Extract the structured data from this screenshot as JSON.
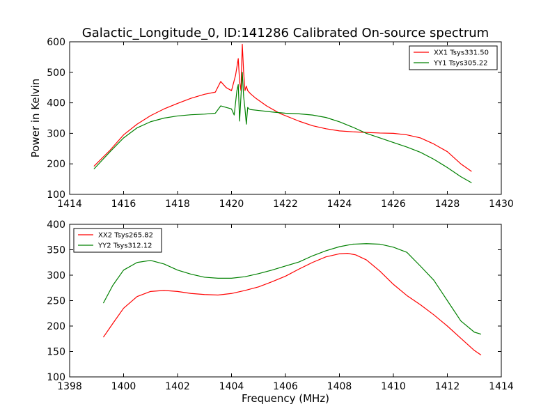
{
  "figure": {
    "title": "Galactic_Longitude_0, ID:141286 Calibrated On-source spectrum",
    "shared_xlabel": "Frequency (MHz)"
  },
  "chart_data": [
    {
      "type": "line",
      "title": "Galactic_Longitude_0, ID:141286 Calibrated On-source spectrum",
      "xlabel": "",
      "ylabel": "Power in Kelvin",
      "xlim": [
        1414,
        1430
      ],
      "ylim": [
        100,
        600
      ],
      "xticks": [
        "1414",
        "1416",
        "1418",
        "1420",
        "1422",
        "1424",
        "1426",
        "1428",
        "1430"
      ],
      "yticks": [
        "100",
        "200",
        "300",
        "400",
        "500",
        "600"
      ],
      "grid": false,
      "legend": "top-right",
      "series": [
        {
          "name": "XX1 Tsys331.50",
          "color": "#ff0000",
          "x": [
            1414.9,
            1415.5,
            1416,
            1416.5,
            1417,
            1417.5,
            1418,
            1418.5,
            1419,
            1419.4,
            1419.6,
            1419.8,
            1420,
            1420.15,
            1420.25,
            1420.3,
            1420.35,
            1420.4,
            1420.45,
            1420.5,
            1420.55,
            1420.6,
            1420.7,
            1420.9,
            1421.3,
            1421.8,
            1422.5,
            1423,
            1423.5,
            1424,
            1424.5,
            1425,
            1425.5,
            1426,
            1426.5,
            1427,
            1427.5,
            1428,
            1428.5,
            1428.9
          ],
          "y": [
            192,
            245,
            295,
            330,
            358,
            380,
            398,
            415,
            428,
            435,
            470,
            450,
            440,
            490,
            545,
            470,
            440,
            592,
            500,
            440,
            455,
            440,
            430,
            415,
            390,
            365,
            340,
            325,
            315,
            308,
            305,
            303,
            301,
            300,
            295,
            285,
            265,
            240,
            200,
            175
          ]
        },
        {
          "name": "YY1 Tsys305.22",
          "color": "#008000",
          "x": [
            1414.9,
            1415.5,
            1416,
            1416.5,
            1417,
            1417.5,
            1418,
            1418.5,
            1419,
            1419.4,
            1419.6,
            1419.8,
            1420,
            1420.1,
            1420.2,
            1420.25,
            1420.3,
            1420.35,
            1420.4,
            1420.45,
            1420.5,
            1420.55,
            1420.6,
            1420.65,
            1420.7,
            1421,
            1421.5,
            1422,
            1422.5,
            1423,
            1423.5,
            1424,
            1424.5,
            1425,
            1425.5,
            1426,
            1426.5,
            1427,
            1427.5,
            1428,
            1428.5,
            1428.9
          ],
          "y": [
            183,
            240,
            285,
            318,
            338,
            350,
            357,
            361,
            363,
            366,
            390,
            385,
            380,
            360,
            440,
            460,
            340,
            420,
            500,
            420,
            380,
            330,
            385,
            380,
            378,
            375,
            370,
            366,
            364,
            360,
            352,
            338,
            320,
            300,
            285,
            270,
            255,
            238,
            215,
            188,
            158,
            138
          ]
        }
      ]
    },
    {
      "type": "line",
      "title": "",
      "xlabel": "Frequency (MHz)",
      "ylabel": "",
      "xlim": [
        1398,
        1414
      ],
      "ylim": [
        100,
        400
      ],
      "xticks": [
        "1398",
        "1400",
        "1402",
        "1404",
        "1406",
        "1408",
        "1410",
        "1412",
        "1414"
      ],
      "yticks": [
        "100",
        "150",
        "200",
        "250",
        "300",
        "350",
        "400"
      ],
      "grid": false,
      "legend": "top-left",
      "series": [
        {
          "name": "XX2 Tsys265.82",
          "color": "#ff0000",
          "x": [
            1399.25,
            1399.6,
            1400,
            1400.5,
            1401,
            1401.5,
            1402,
            1402.5,
            1403,
            1403.5,
            1404,
            1404.5,
            1405,
            1405.5,
            1406,
            1406.5,
            1407,
            1407.5,
            1408,
            1408.3,
            1408.6,
            1409,
            1409.5,
            1410,
            1410.5,
            1411,
            1411.5,
            1412,
            1412.5,
            1413,
            1413.25
          ],
          "y": [
            178,
            205,
            235,
            258,
            268,
            270,
            268,
            264,
            262,
            261,
            264,
            270,
            277,
            287,
            298,
            312,
            325,
            336,
            342,
            343,
            340,
            330,
            308,
            282,
            260,
            242,
            222,
            200,
            176,
            152,
            143
          ]
        },
        {
          "name": "YY2 Tsys312.12",
          "color": "#008000",
          "x": [
            1399.25,
            1399.6,
            1400,
            1400.5,
            1401,
            1401.5,
            1402,
            1402.5,
            1403,
            1403.5,
            1404,
            1404.5,
            1405,
            1405.5,
            1406,
            1406.5,
            1407,
            1407.5,
            1408,
            1408.5,
            1409,
            1409.5,
            1410,
            1410.5,
            1411,
            1411.5,
            1412,
            1412.5,
            1413,
            1413.25
          ],
          "y": [
            245,
            280,
            310,
            325,
            329,
            322,
            310,
            302,
            296,
            294,
            294,
            297,
            303,
            310,
            318,
            326,
            338,
            348,
            356,
            361,
            362,
            361,
            355,
            345,
            318,
            290,
            250,
            210,
            188,
            184
          ]
        }
      ]
    }
  ]
}
